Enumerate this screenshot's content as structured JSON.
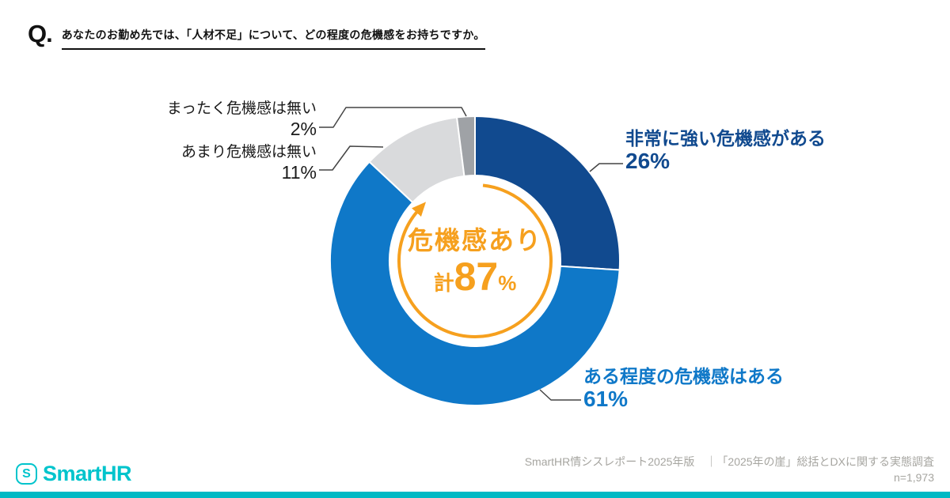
{
  "question": {
    "prefix": "Q.",
    "text": "あなたのお勤め先では、「人材不足」について、どの程度の危機感をお持ちですか。"
  },
  "chart_data": {
    "type": "pie",
    "subtype": "donut",
    "categories": [
      "非常に強い危機感がある",
      "ある程度の危機感はある",
      "あまり危機感は無い",
      "まったく危機感は無い"
    ],
    "values": [
      26,
      61,
      11,
      2
    ],
    "unit": "%",
    "colors": [
      "#114A8F",
      "#0F78C8",
      "#D9DADC",
      "#9FA2A6"
    ],
    "start_angle_deg": 0,
    "direction": "clockwise",
    "legend_position": "callout-labels",
    "center_label": {
      "line1": "危機感あり",
      "prefix": "計",
      "value": "87",
      "suffix": "%",
      "accent_color": "#F6A01E"
    },
    "labels": [
      {
        "text": "非常に強い危機感がある",
        "value": "26%"
      },
      {
        "text": "ある程度の危機感はある",
        "value": "61%"
      },
      {
        "text": "あまり危機感は無い",
        "value": "11%"
      },
      {
        "text": "まったく危機感は無い",
        "value": "2%"
      }
    ]
  },
  "footer": {
    "logo": {
      "icon": "smarthr-s-icon",
      "icon_letter": "S",
      "wordmark": "SmartHR",
      "color": "#00C4CC"
    },
    "source_line": "SmartHR情シスレポート2025年版　｜「2025年の崖」総括とDXに関する実態調査",
    "sample_size": "n=1,973",
    "bar_color": "#00B9C4"
  }
}
